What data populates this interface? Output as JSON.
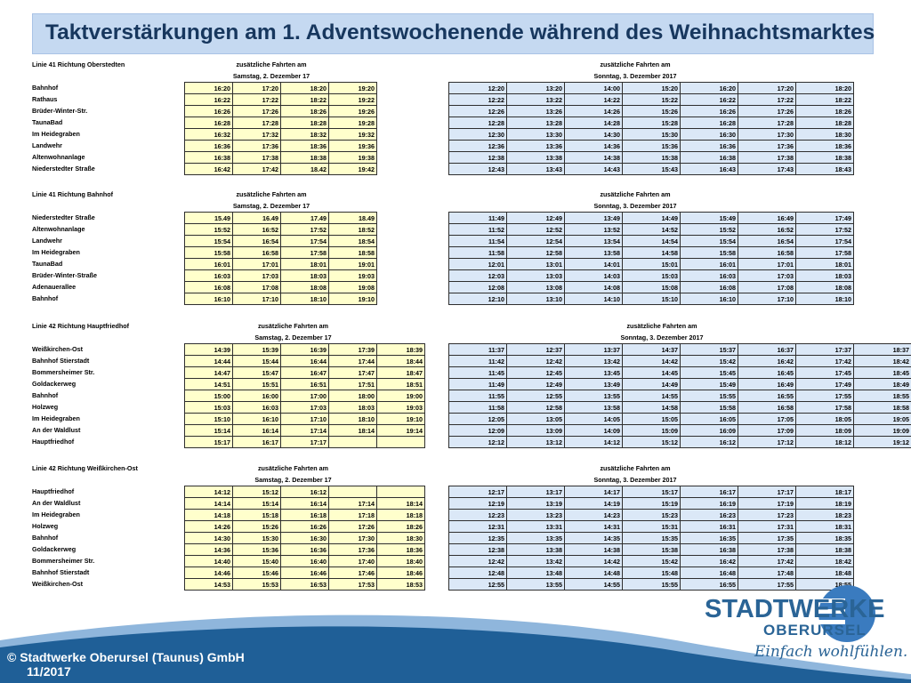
{
  "title": "Taktverstärkungen am 1. Adventswochenende während des Weihnachtsmarktes",
  "sections": [
    {
      "line": "Linie 41 Richtung Oberstedten",
      "sat_label": "zusätzliche Fahrten am",
      "sat_date": "Samstag, 2. Dezember 17",
      "sun_label": "zusätzliche Fahrten am",
      "sun_date": "Sonntag, 3. Dezember 2017",
      "stops": [
        "Bahnhof",
        "Rathaus",
        "Brüder-Winter-Str.",
        "TaunaBad",
        "Im Heidegraben",
        "Landwehr",
        "Altenwohnanlage",
        "Niederstedter Straße"
      ],
      "sat": [
        [
          "16:20",
          "17:20",
          "18:20",
          "19:20"
        ],
        [
          "16:22",
          "17:22",
          "18:22",
          "19:22"
        ],
        [
          "16:26",
          "17:26",
          "18:26",
          "19:26"
        ],
        [
          "16:28",
          "17:28",
          "18:28",
          "19:28"
        ],
        [
          "16:32",
          "17:32",
          "18:32",
          "19:32"
        ],
        [
          "16:36",
          "17:36",
          "18:36",
          "19:36"
        ],
        [
          "16:38",
          "17:38",
          "18:38",
          "19:38"
        ],
        [
          "16:42",
          "17:42",
          "18.42",
          "19:42"
        ]
      ],
      "sun": [
        [
          "12:20",
          "13:20",
          "14:00",
          "15:20",
          "16:20",
          "17:20",
          "18:20"
        ],
        [
          "12:22",
          "13:22",
          "14:22",
          "15:22",
          "16:22",
          "17:22",
          "18:22"
        ],
        [
          "12:26",
          "13:26",
          "14:26",
          "15:26",
          "16:26",
          "17:26",
          "18:26"
        ],
        [
          "12:28",
          "13:28",
          "14:28",
          "15:28",
          "16:28",
          "17:28",
          "18:28"
        ],
        [
          "12:30",
          "13:30",
          "14:30",
          "15:30",
          "16:30",
          "17:30",
          "18:30"
        ],
        [
          "12:36",
          "13:36",
          "14:36",
          "15:36",
          "16:36",
          "17:36",
          "18:36"
        ],
        [
          "12:38",
          "13:38",
          "14:38",
          "15:38",
          "16:38",
          "17:38",
          "18:38"
        ],
        [
          "12:43",
          "13:43",
          "14:43",
          "15:43",
          "16:43",
          "17:43",
          "18:43"
        ]
      ]
    },
    {
      "line": "Linie 41 Richtung Bahnhof",
      "sat_label": "zusätzliche Fahrten am",
      "sat_date": "Samstag, 2. Dezember 17",
      "sun_label": "zusätzliche Fahrten am",
      "sun_date": "Sonntag, 3. Dezember 2017",
      "stops": [
        "Niederstedter Straße",
        "Altenwohnanlage",
        "Landwehr",
        "Im Heidegraben",
        "TaunaBad",
        "Brüder-Winter-Straße",
        "Adenauerallee",
        "Bahnhof"
      ],
      "sat": [
        [
          "15.49",
          "16.49",
          "17.49",
          "18.49"
        ],
        [
          "15:52",
          "16:52",
          "17:52",
          "18:52"
        ],
        [
          "15:54",
          "16:54",
          "17:54",
          "18:54"
        ],
        [
          "15:58",
          "16:58",
          "17:58",
          "18:58"
        ],
        [
          "16:01",
          "17:01",
          "18:01",
          "19:01"
        ],
        [
          "16:03",
          "17:03",
          "18:03",
          "19:03"
        ],
        [
          "16:08",
          "17:08",
          "18:08",
          "19:08"
        ],
        [
          "16:10",
          "17:10",
          "18:10",
          "19:10"
        ]
      ],
      "sun": [
        [
          "11:49",
          "12:49",
          "13:49",
          "14:49",
          "15:49",
          "16:49",
          "17:49"
        ],
        [
          "11:52",
          "12:52",
          "13:52",
          "14:52",
          "15:52",
          "16:52",
          "17:52"
        ],
        [
          "11:54",
          "12:54",
          "13:54",
          "14:54",
          "15:54",
          "16:54",
          "17:54"
        ],
        [
          "11:58",
          "12:58",
          "13:58",
          "14:58",
          "15:58",
          "16:58",
          "17:58"
        ],
        [
          "12:01",
          "13:01",
          "14:01",
          "15:01",
          "16:01",
          "17:01",
          "18:01"
        ],
        [
          "12:03",
          "13:03",
          "14:03",
          "15:03",
          "16:03",
          "17:03",
          "18:03"
        ],
        [
          "12:08",
          "13:08",
          "14:08",
          "15:08",
          "16:08",
          "17:08",
          "18:08"
        ],
        [
          "12:10",
          "13:10",
          "14:10",
          "15:10",
          "16:10",
          "17:10",
          "18:10"
        ]
      ]
    },
    {
      "line": "Linie 42 Richtung Hauptfriedhof",
      "sat_label": "zusätzliche Fahrten am",
      "sat_date": "Samstag, 2. Dezember 17",
      "sun_label": "zusätzliche Fahrten am",
      "sun_date": "Sonntag, 3. Dezember 2017",
      "stops": [
        "Weißkirchen-Ost",
        "Bahnhof Stierstadt",
        "Bommersheimer Str.",
        "Goldackerweg",
        "Bahnhof",
        "Holzweg",
        "Im Heidegraben",
        "An der Waldlust",
        "Hauptfriedhof"
      ],
      "sat": [
        [
          "14:39",
          "15:39",
          "16:39",
          "17:39",
          "18:39"
        ],
        [
          "14:44",
          "15:44",
          "16:44",
          "17:44",
          "18:44"
        ],
        [
          "14:47",
          "15:47",
          "16:47",
          "17:47",
          "18:47"
        ],
        [
          "14:51",
          "15:51",
          "16:51",
          "17:51",
          "18:51"
        ],
        [
          "15:00",
          "16:00",
          "17:00",
          "18:00",
          "19:00"
        ],
        [
          "15:03",
          "16:03",
          "17:03",
          "18:03",
          "19:03"
        ],
        [
          "15:10",
          "16:10",
          "17:10",
          "18:10",
          "19:10"
        ],
        [
          "15:14",
          "16:14",
          "17:14",
          "18:14",
          "19:14"
        ],
        [
          "15:17",
          "16:17",
          "17:17",
          "",
          ""
        ]
      ],
      "sun": [
        [
          "11:37",
          "12:37",
          "13:37",
          "14:37",
          "15:37",
          "16:37",
          "17:37",
          "18:37"
        ],
        [
          "11:42",
          "12:42",
          "13:42",
          "14:42",
          "15:42",
          "16:42",
          "17:42",
          "18:42"
        ],
        [
          "11:45",
          "12:45",
          "13:45",
          "14:45",
          "15:45",
          "16:45",
          "17:45",
          "18:45"
        ],
        [
          "11:49",
          "12:49",
          "13:49",
          "14:49",
          "15:49",
          "16:49",
          "17:49",
          "18:49"
        ],
        [
          "11:55",
          "12:55",
          "13:55",
          "14:55",
          "15:55",
          "16:55",
          "17:55",
          "18:55"
        ],
        [
          "11:58",
          "12:58",
          "13:58",
          "14:58",
          "15:58",
          "16:58",
          "17:58",
          "18:58"
        ],
        [
          "12:05",
          "13:05",
          "14:05",
          "15:05",
          "16:05",
          "17:05",
          "18:05",
          "19:05"
        ],
        [
          "12:09",
          "13:09",
          "14:09",
          "15:09",
          "16:09",
          "17:09",
          "18:09",
          "19:09"
        ],
        [
          "12:12",
          "13:12",
          "14:12",
          "15:12",
          "16:12",
          "17:12",
          "18:12",
          "19:12"
        ]
      ]
    },
    {
      "line": "Linie 42 Richtung Weißkirchen-Ost",
      "sat_label": "zusätzliche Fahrten am",
      "sat_date": "Samstag, 2. Dezember 17",
      "sun_label": "zusätzliche Fahrten am",
      "sun_date": "Sonntag, 3. Dezember 2017",
      "stops": [
        "Hauptfriedhof",
        "An der Waldlust",
        "Im Heidegraben",
        "Holzweg",
        "Bahnhof",
        "Goldackerweg",
        "Bommersheimer Str.",
        "Bahnhof Stierstadt",
        "Weißkirchen-Ost"
      ],
      "sat": [
        [
          "14:12",
          "15:12",
          "16:12",
          "",
          ""
        ],
        [
          "14:14",
          "15:14",
          "16:14",
          "17:14",
          "18:14"
        ],
        [
          "14:18",
          "15:18",
          "16:18",
          "17:18",
          "18:18"
        ],
        [
          "14:26",
          "15:26",
          "16:26",
          "17:26",
          "18:26"
        ],
        [
          "14:30",
          "15:30",
          "16:30",
          "17:30",
          "18:30"
        ],
        [
          "14:36",
          "15:36",
          "16:36",
          "17:36",
          "18:36"
        ],
        [
          "14:40",
          "15:40",
          "16:40",
          "17:40",
          "18:40"
        ],
        [
          "14:46",
          "15:46",
          "16:46",
          "17:46",
          "18:46"
        ],
        [
          "14:53",
          "15:53",
          "16:53",
          "17:53",
          "18:53"
        ]
      ],
      "sun": [
        [
          "12:17",
          "13:17",
          "14:17",
          "15:17",
          "16:17",
          "17:17",
          "18:17"
        ],
        [
          "12:19",
          "13:19",
          "14:19",
          "15:19",
          "16:19",
          "17:19",
          "18:19"
        ],
        [
          "12:23",
          "13:23",
          "14:23",
          "15:23",
          "16:23",
          "17:23",
          "18:23"
        ],
        [
          "12:31",
          "13:31",
          "14:31",
          "15:31",
          "16:31",
          "17:31",
          "18:31"
        ],
        [
          "12:35",
          "13:35",
          "14:35",
          "15:35",
          "16:35",
          "17:35",
          "18:35"
        ],
        [
          "12:38",
          "13:38",
          "14:38",
          "15:38",
          "16:38",
          "17:38",
          "18:38"
        ],
        [
          "12:42",
          "13:42",
          "14:42",
          "15:42",
          "16:42",
          "17:42",
          "18:42"
        ],
        [
          "12:48",
          "13:48",
          "14:48",
          "15:48",
          "16:48",
          "17:48",
          "18:48"
        ],
        [
          "12:55",
          "13:55",
          "14:55",
          "15:55",
          "16:55",
          "17:55",
          "18:55"
        ]
      ]
    }
  ],
  "footer": {
    "copyright": "© Stadtwerke Oberursel (Taunus) GmbH",
    "date": "11/2017"
  },
  "logo": {
    "brand": "STADTWERKE",
    "city": "OBERURSEL",
    "slogan": "Einfach wohlfühlen."
  },
  "colors": {
    "title_bg": "#c5d9f1",
    "title_text": "#17375e",
    "sat_cell": "#ffffcc",
    "sun_cell": "#dbe8f7",
    "footer_wave": "#1f5f97"
  }
}
